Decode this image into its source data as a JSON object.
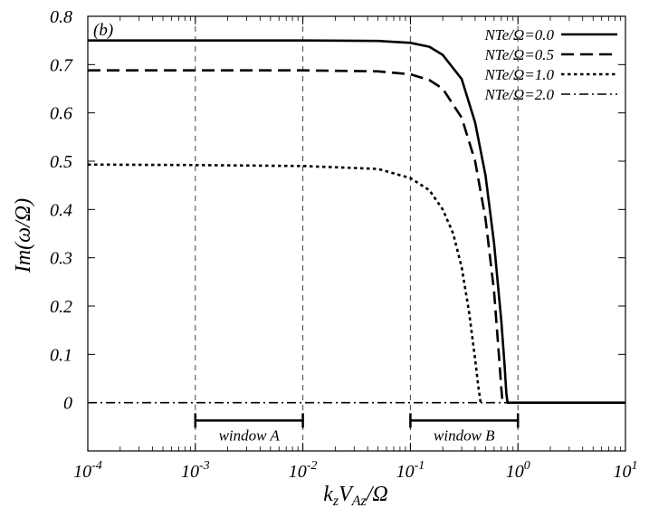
{
  "chart_data": {
    "type": "line",
    "panel_label": "(b)",
    "xlabel": "kzVAz/Ω",
    "xlabel_parts": [
      {
        "text": "k",
        "sub": false
      },
      {
        "text": "z",
        "sub": true
      },
      {
        "text": "V",
        "sub": false
      },
      {
        "text": "Az",
        "sub": true
      },
      {
        "text": "/Ω",
        "sub": false
      }
    ],
    "ylabel": "Im(ω/Ω)",
    "xscale": "log",
    "xlim": [
      0.0001,
      10
    ],
    "ylim": [
      -0.1,
      0.8
    ],
    "grid": false,
    "legend_position": "top-right",
    "x_ticks": [
      {
        "base": "10",
        "exp": "-4",
        "value": 0.0001
      },
      {
        "base": "10",
        "exp": "-3",
        "value": 0.001
      },
      {
        "base": "10",
        "exp": "-2",
        "value": 0.01
      },
      {
        "base": "10",
        "exp": "-1",
        "value": 0.1
      },
      {
        "base": "10",
        "exp": "0",
        "value": 1
      },
      {
        "base": "10",
        "exp": "1",
        "value": 10
      }
    ],
    "y_ticks": [
      {
        "label": "0",
        "value": 0
      },
      {
        "label": "0.1",
        "value": 0.1
      },
      {
        "label": "0.2",
        "value": 0.2
      },
      {
        "label": "0.3",
        "value": 0.3
      },
      {
        "label": "0.4",
        "value": 0.4
      },
      {
        "label": "0.5",
        "value": 0.5
      },
      {
        "label": "0.6",
        "value": 0.6
      },
      {
        "label": "0.7",
        "value": 0.7
      },
      {
        "label": "0.8",
        "value": 0.8
      }
    ],
    "vertical_reference_lines": [
      0.001,
      0.01,
      0.1,
      1
    ],
    "windows": [
      {
        "label": "window A",
        "x_start": 0.001,
        "x_end": 0.01,
        "y": -0.037
      },
      {
        "label": "window B",
        "x_start": 0.1,
        "x_end": 1,
        "y": -0.037
      }
    ],
    "series": [
      {
        "name": "NTe/Ω=0.0",
        "dash": "solid",
        "points": [
          [
            0.0001,
            0.75
          ],
          [
            0.001,
            0.75
          ],
          [
            0.01,
            0.75
          ],
          [
            0.05,
            0.749
          ],
          [
            0.1,
            0.745
          ],
          [
            0.15,
            0.737
          ],
          [
            0.2,
            0.72
          ],
          [
            0.3,
            0.67
          ],
          [
            0.4,
            0.58
          ],
          [
            0.5,
            0.47
          ],
          [
            0.6,
            0.33
          ],
          [
            0.7,
            0.17
          ],
          [
            0.75,
            0.08
          ],
          [
            0.78,
            0.02
          ],
          [
            0.8,
            0
          ],
          [
            10,
            0
          ]
        ]
      },
      {
        "name": "NTe/Ω=0.5",
        "dash": "dashed",
        "points": [
          [
            0.0001,
            0.688
          ],
          [
            0.001,
            0.688
          ],
          [
            0.01,
            0.688
          ],
          [
            0.05,
            0.686
          ],
          [
            0.1,
            0.68
          ],
          [
            0.15,
            0.668
          ],
          [
            0.2,
            0.65
          ],
          [
            0.3,
            0.59
          ],
          [
            0.4,
            0.5
          ],
          [
            0.5,
            0.38
          ],
          [
            0.6,
            0.23
          ],
          [
            0.67,
            0.09
          ],
          [
            0.7,
            0.03
          ],
          [
            0.72,
            0
          ]
        ]
      },
      {
        "name": "NTe/Ω=1.0",
        "dash": "dotted",
        "points": [
          [
            0.0001,
            0.493
          ],
          [
            0.001,
            0.492
          ],
          [
            0.01,
            0.49
          ],
          [
            0.05,
            0.484
          ],
          [
            0.1,
            0.465
          ],
          [
            0.15,
            0.44
          ],
          [
            0.2,
            0.4
          ],
          [
            0.25,
            0.35
          ],
          [
            0.3,
            0.28
          ],
          [
            0.35,
            0.19
          ],
          [
            0.4,
            0.09
          ],
          [
            0.43,
            0.03
          ],
          [
            0.45,
            0
          ]
        ]
      },
      {
        "name": "NTe/Ω=2.0",
        "dash": "dashdot",
        "points": [
          [
            0.0001,
            0
          ],
          [
            10,
            0
          ]
        ]
      }
    ]
  }
}
